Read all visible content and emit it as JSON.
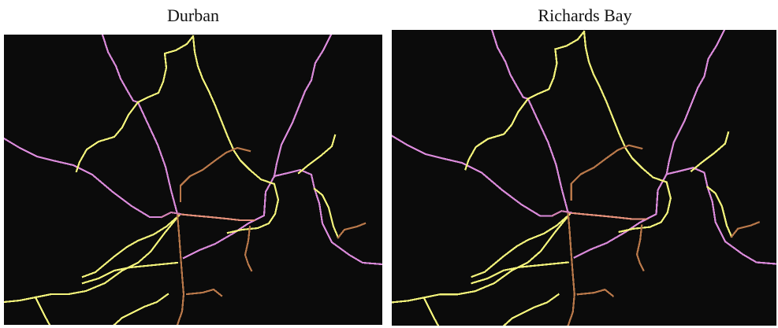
{
  "panels": [
    {
      "title": "Durban"
    },
    {
      "title": "Richards Bay"
    }
  ],
  "colors": {
    "background": "#0b0b0b",
    "yellow": "#f2f27a",
    "violet": "#d98ad9",
    "brown": "#b9784a",
    "salmon": "#e4907a",
    "pink": "#cf7fb0"
  }
}
